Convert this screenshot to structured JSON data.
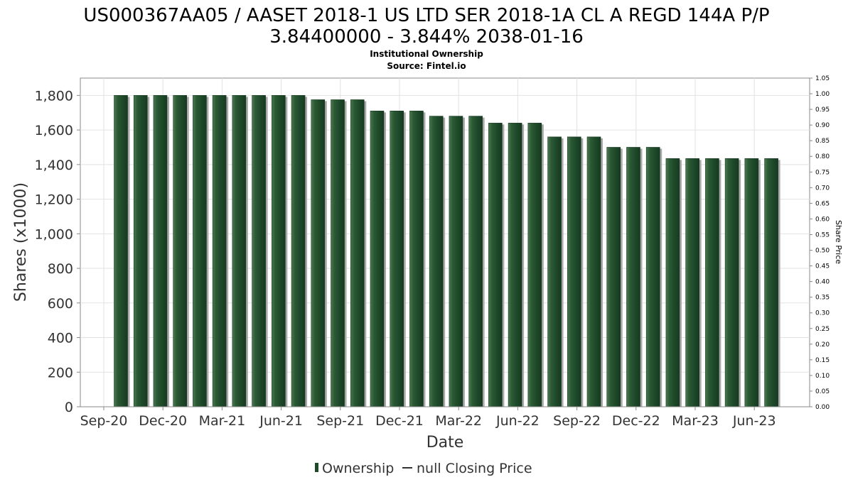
{
  "chart_data": {
    "type": "bar",
    "title_line1": "US000367AA05 / AASET 2018-1 US LTD SER 2018-1A CL A REGD 144A P/P",
    "title_line2": "3.84400000 - 3.844% 2038-01-16",
    "subtitle_line1": "Institutional Ownership",
    "subtitle_line2": "Source: Fintel.io",
    "xlabel": "Date",
    "ylabel": "Shares (x1000)",
    "y2label": "Share Price",
    "ylim": [
      0,
      1900
    ],
    "y2lim": [
      0,
      1.05
    ],
    "yticks": [
      0,
      200,
      400,
      600,
      800,
      1000,
      1200,
      1400,
      1600,
      1800
    ],
    "y2ticks": [
      0.0,
      0.05,
      0.1,
      0.15,
      0.2,
      0.25,
      0.3,
      0.35,
      0.4,
      0.45,
      0.5,
      0.55,
      0.6,
      0.65,
      0.7,
      0.75,
      0.8,
      0.85,
      0.9,
      0.95,
      1.0,
      1.05
    ],
    "xtick_labels": [
      "Sep-20",
      "Dec-20",
      "Mar-21",
      "Jun-21",
      "Sep-21",
      "Dec-21",
      "Mar-22",
      "Jun-22",
      "Sep-22",
      "Dec-22",
      "Mar-23",
      "Jun-23"
    ],
    "grid": true,
    "legend_position": "bottom-center",
    "series": [
      {
        "name": "Ownership",
        "color": "#1e4a2a",
        "values": [
          1800,
          1800,
          1800,
          1800,
          1800,
          1800,
          1800,
          1800,
          1800,
          1800,
          1775,
          1775,
          1775,
          1710,
          1710,
          1710,
          1680,
          1680,
          1680,
          1640,
          1640,
          1640,
          1560,
          1560,
          1560,
          1500,
          1500,
          1500,
          1435,
          1435,
          1435,
          1435,
          1435,
          1435
        ]
      },
      {
        "name": "null Closing Price",
        "color": "#333333",
        "values": []
      }
    ]
  }
}
